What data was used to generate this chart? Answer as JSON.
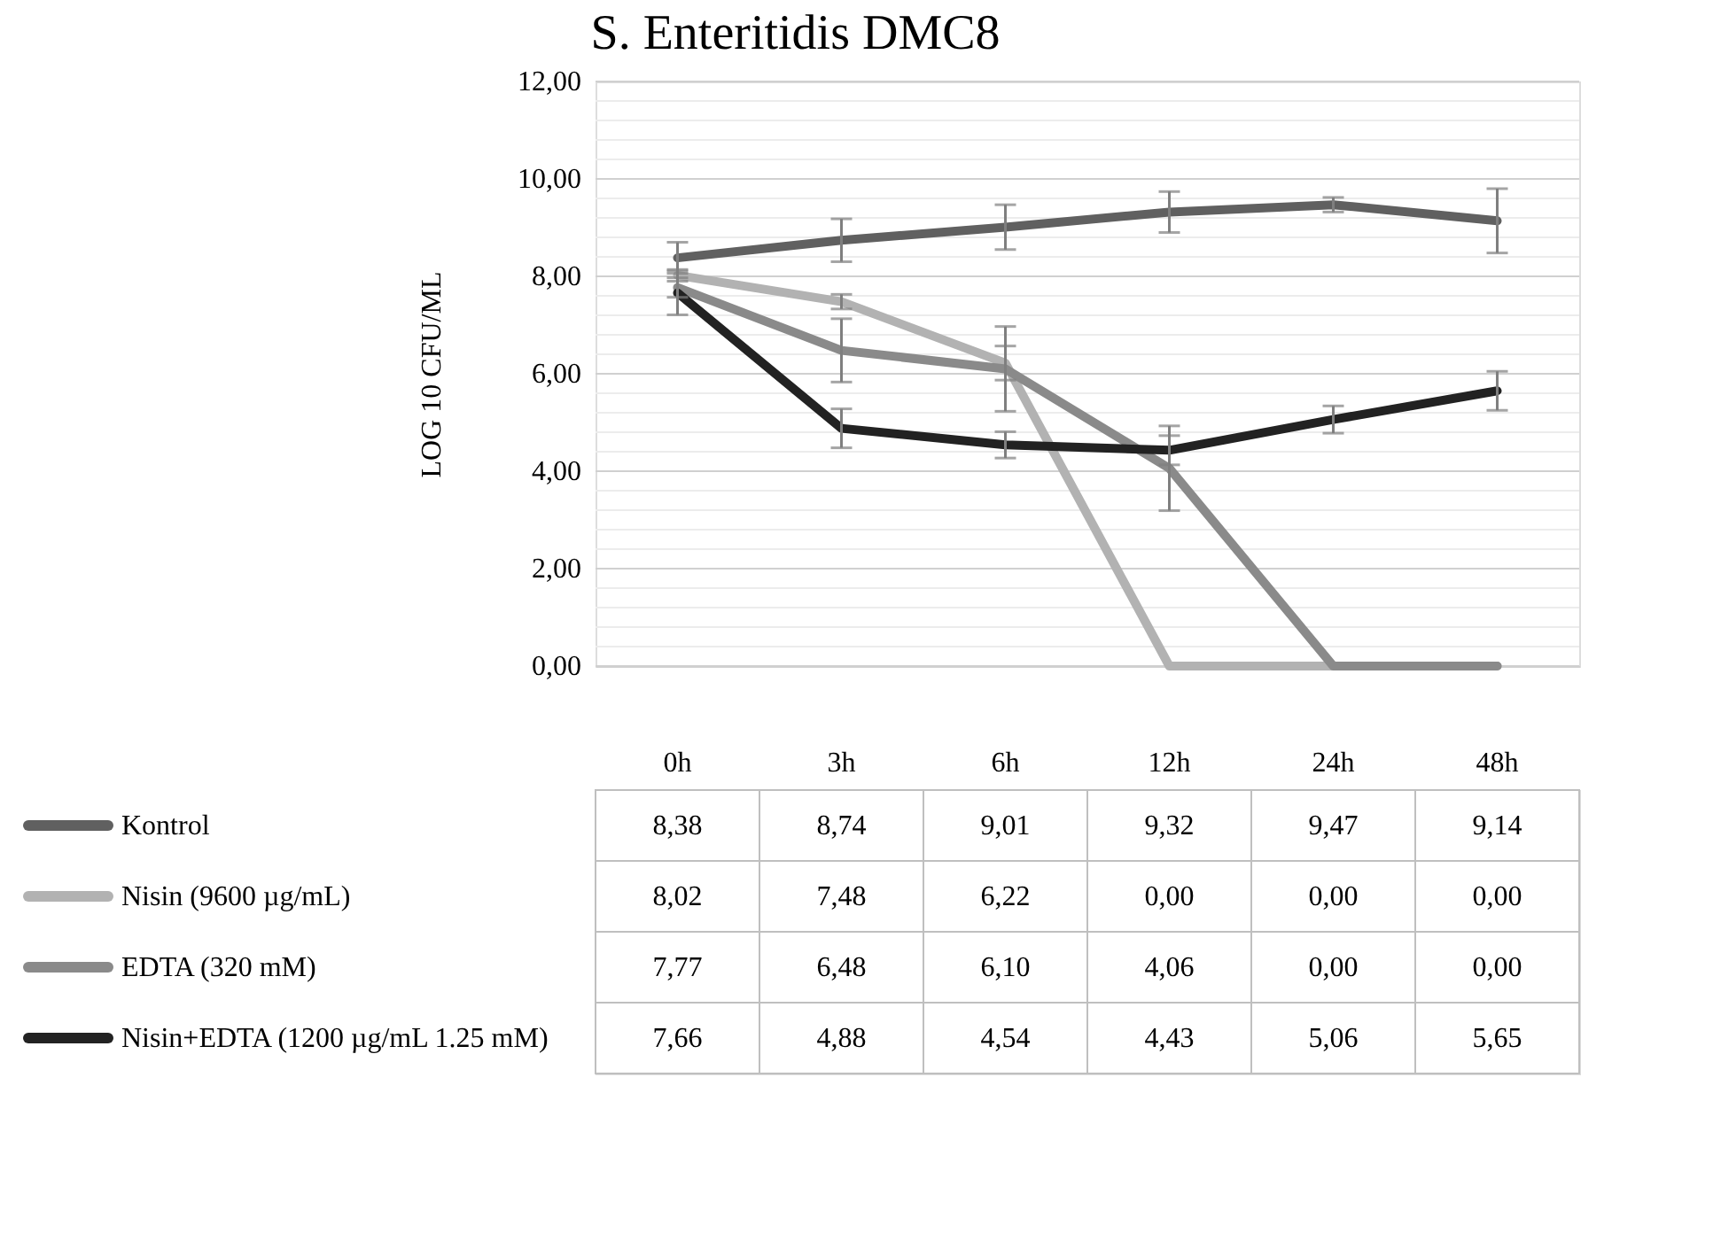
{
  "chart_data": {
    "type": "line",
    "title": "S. Enteritidis DMC8",
    "ylabel": "LOG 10 CFU/ML",
    "categories": [
      "0h",
      "3h",
      "6h",
      "12h",
      "24h",
      "48h"
    ],
    "series": [
      {
        "name": "Kontrol",
        "color": "#606060",
        "values": [
          8.38,
          8.74,
          9.01,
          9.32,
          9.47,
          9.14
        ],
        "errors": [
          0.32,
          0.44,
          0.46,
          0.42,
          0.15,
          0.66
        ],
        "value_labels": [
          "8,38",
          "8,74",
          "9,01",
          "9,32",
          "9,47",
          "9,14"
        ]
      },
      {
        "name": "Nisin (9600 µg/mL)",
        "color": "#b2b2b2",
        "values": [
          8.02,
          7.48,
          6.22,
          0.0,
          0.0,
          0.0
        ],
        "errors": [
          0.12,
          0.15,
          0.35,
          null,
          null,
          null
        ],
        "value_labels": [
          "8,02",
          "7,48",
          "6,22",
          "0,00",
          "0,00",
          "0,00"
        ]
      },
      {
        "name": "EDTA (320 mM)",
        "color": "#8a8a8a",
        "values": [
          7.77,
          6.48,
          6.1,
          4.06,
          0.0,
          0.0
        ],
        "errors": [
          0.2,
          0.65,
          0.87,
          0.87,
          null,
          null
        ],
        "value_labels": [
          "7,77",
          "6,48",
          "6,10",
          "4,06",
          "0,00",
          "0,00"
        ]
      },
      {
        "name": "Nisin+EDTA (1200 µg/mL 1.25 mM)",
        "color": "#222222",
        "values": [
          7.66,
          4.88,
          4.54,
          4.43,
          5.06,
          5.65
        ],
        "errors": [
          0.45,
          0.4,
          0.27,
          0.3,
          0.28,
          0.4
        ],
        "value_labels": [
          "7,66",
          "4,88",
          "4,54",
          "4,43",
          "5,06",
          "5,65"
        ]
      }
    ],
    "ylim": [
      0,
      12
    ],
    "yticks": [
      {
        "value": 0,
        "label": "0,00"
      },
      {
        "value": 0.4,
        "label": null
      },
      {
        "value": 0.8,
        "label": null
      },
      {
        "value": 1.2,
        "label": null
      },
      {
        "value": 1.6,
        "label": null
      },
      {
        "value": 2,
        "label": "2,00"
      },
      {
        "value": 2.4,
        "label": null
      },
      {
        "value": 2.8,
        "label": null
      },
      {
        "value": 3.2,
        "label": null
      },
      {
        "value": 3.6,
        "label": null
      },
      {
        "value": 4,
        "label": "4,00"
      },
      {
        "value": 4.4,
        "label": null
      },
      {
        "value": 4.8,
        "label": null
      },
      {
        "value": 5.2,
        "label": null
      },
      {
        "value": 5.6,
        "label": null
      },
      {
        "value": 6,
        "label": "6,00"
      },
      {
        "value": 6.4,
        "label": null
      },
      {
        "value": 6.8,
        "label": null
      },
      {
        "value": 7.2,
        "label": null
      },
      {
        "value": 7.6,
        "label": null
      },
      {
        "value": 8,
        "label": "8,00"
      },
      {
        "value": 8.4,
        "label": null
      },
      {
        "value": 8.8,
        "label": null
      },
      {
        "value": 9.2,
        "label": null
      },
      {
        "value": 9.6,
        "label": null
      },
      {
        "value": 10,
        "label": "10,00"
      },
      {
        "value": 10.4,
        "label": null
      },
      {
        "value": 10.8,
        "label": null
      },
      {
        "value": 11.2,
        "label": null
      },
      {
        "value": 11.6,
        "label": null
      },
      {
        "value": 12,
        "label": "12,00"
      }
    ],
    "grid": "y",
    "legend": "bottom",
    "line_style": "solid",
    "marker": "none"
  }
}
